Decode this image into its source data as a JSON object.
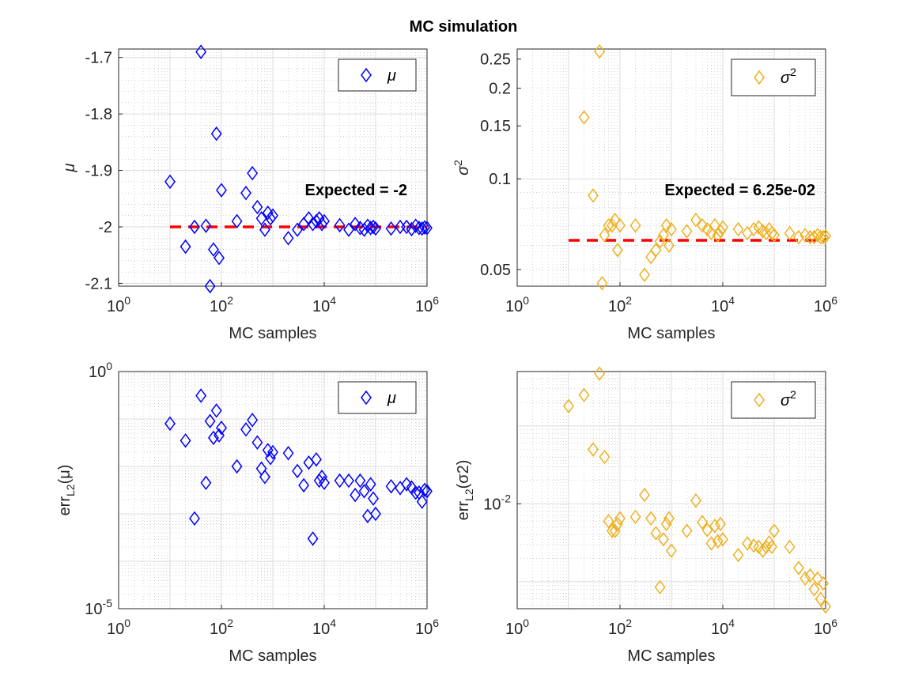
{
  "figure_title": "MC simulation",
  "chart_data": [
    {
      "type": "scatter",
      "ylabel_base": "μ",
      "xlabel": "MC samples",
      "xscale": "log",
      "yscale": "linear",
      "xlim": [
        1,
        1000000
      ],
      "ylim": [
        -2.105,
        -1.685
      ],
      "xticks": [
        1,
        100,
        10000,
        1000000
      ],
      "yticks": [
        -2.1,
        -2.0,
        -1.9,
        -1.8,
        -1.7
      ],
      "ytick_labels": [
        "-2.1",
        "-2",
        "-1.9",
        "-1.8",
        "-1.7"
      ],
      "grid": true,
      "legend_position": "top-right",
      "marker": "diamond",
      "color": "#0000ff",
      "series": [
        {
          "name": "μ",
          "x": [
            10,
            20,
            30,
            40,
            50,
            60,
            70,
            80,
            90,
            100,
            200,
            300,
            400,
            500,
            600,
            700,
            800,
            900,
            1000,
            2000,
            3000,
            4000,
            5000,
            6000,
            7000,
            8000,
            9000,
            10000,
            20000,
            30000,
            40000,
            50000,
            60000,
            70000,
            80000,
            90000,
            100000,
            200000,
            300000,
            400000,
            500000,
            600000,
            700000,
            800000,
            900000,
            1000000
          ],
          "y": [
            -1.92,
            -2.035,
            -2.0,
            -1.69,
            -1.998,
            -2.105,
            -2.04,
            -1.835,
            -2.055,
            -1.935,
            -1.99,
            -1.94,
            -1.905,
            -1.965,
            -1.985,
            -2.005,
            -1.975,
            -1.985,
            -1.98,
            -2.02,
            -2.005,
            -1.995,
            -1.985,
            -1.995,
            -1.99,
            -1.985,
            -1.995,
            -1.99,
            -1.997,
            -2.005,
            -1.995,
            -2.002,
            -2.005,
            -1.998,
            -2.002,
            -2.0,
            -2.003,
            -2.003,
            -2.0,
            -2.0,
            -2.004,
            -1.998,
            -2.002,
            -2.003,
            -2.001,
            -2.002
          ]
        }
      ],
      "reference_line": {
        "y": -2,
        "color": "#ff0000",
        "label": "Expected = -2"
      }
    },
    {
      "type": "scatter",
      "ylabel_base": "σ",
      "ylabel_sup": "2",
      "xlabel": "MC samples",
      "xscale": "log",
      "yscale": "log",
      "xlim": [
        1,
        1000000
      ],
      "ylim": [
        0.044,
        0.27
      ],
      "xticks": [
        1,
        100,
        10000,
        1000000
      ],
      "yticks": [
        0.05,
        0.1,
        0.15,
        0.2,
        0.25
      ],
      "ytick_labels": [
        "0.05",
        "0.1",
        "0.15",
        "0.2",
        "0.25"
      ],
      "grid": true,
      "legend_position": "top-right",
      "marker": "diamond",
      "color": "#edb120",
      "series": [
        {
          "name": "σ2",
          "x": [
            20,
            30,
            40,
            45,
            50,
            60,
            70,
            80,
            90,
            100,
            200,
            300,
            400,
            500,
            600,
            700,
            800,
            900,
            1000,
            2000,
            3000,
            4000,
            5000,
            6000,
            7000,
            8000,
            9000,
            10000,
            20000,
            30000,
            40000,
            50000,
            60000,
            70000,
            80000,
            90000,
            100000,
            200000,
            300000,
            400000,
            500000,
            600000,
            700000,
            800000,
            900000,
            1000000
          ],
          "y": [
            0.16,
            0.088,
            0.265,
            0.045,
            0.065,
            0.07,
            0.07,
            0.073,
            0.058,
            0.07,
            0.07,
            0.048,
            0.055,
            0.058,
            0.062,
            0.065,
            0.07,
            0.06,
            0.068,
            0.067,
            0.073,
            0.07,
            0.068,
            0.066,
            0.07,
            0.065,
            0.067,
            0.069,
            0.068,
            0.066,
            0.068,
            0.069,
            0.067,
            0.066,
            0.068,
            0.066,
            0.065,
            0.066,
            0.064,
            0.065,
            0.064,
            0.064,
            0.065,
            0.064,
            0.064,
            0.0645
          ]
        }
      ],
      "reference_line": {
        "y": 0.0625,
        "color": "#ff0000",
        "label": "Expected = 6.25e-02"
      }
    },
    {
      "type": "scatter",
      "ylabel_base": "err",
      "ylabel_sub": "L2",
      "ylabel_paren": "(μ)",
      "xlabel": "MC samples",
      "xscale": "log",
      "yscale": "log",
      "xlim": [
        1,
        1000000
      ],
      "ylim": [
        1e-05,
        1
      ],
      "xticks": [
        1,
        100,
        10000,
        1000000
      ],
      "yticks": [
        1e-05,
        1
      ],
      "ytick_labels": [
        "10^-5",
        "10^0"
      ],
      "grid": true,
      "legend_position": "top-right",
      "marker": "diamond",
      "color": "#0000ff",
      "series": [
        {
          "name": "μ",
          "x": [
            10,
            20,
            30,
            40,
            50,
            60,
            70,
            80,
            90,
            100,
            200,
            300,
            400,
            500,
            600,
            700,
            800,
            900,
            1000,
            2000,
            3000,
            4000,
            5000,
            6000,
            7000,
            8000,
            9000,
            10000,
            20000,
            30000,
            40000,
            50000,
            60000,
            70000,
            80000,
            90000,
            100000,
            200000,
            300000,
            400000,
            500000,
            600000,
            700000,
            800000,
            900000,
            1000000
          ],
          "y": [
            0.08,
            0.035,
            0.0008,
            0.31,
            0.0045,
            0.09,
            0.04,
            0.15,
            0.045,
            0.065,
            0.01,
            0.06,
            0.095,
            0.032,
            0.009,
            0.006,
            0.022,
            0.015,
            0.02,
            0.019,
            0.008,
            0.004,
            0.012,
            0.0003,
            0.014,
            0.005,
            0.006,
            0.0045,
            0.005,
            0.005,
            0.0025,
            0.005,
            0.003,
            0.0009,
            0.0042,
            0.0021,
            0.001,
            0.0038,
            0.0035,
            0.0042,
            0.0036,
            0.0028,
            0.0028,
            0.0018,
            0.0032,
            0.003
          ]
        }
      ]
    },
    {
      "type": "scatter",
      "ylabel_base": "err",
      "ylabel_sub": "L2",
      "ylabel_paren": "(σ2)",
      "xlabel": "MC samples",
      "xscale": "log",
      "yscale": "log",
      "xlim": [
        1,
        1000000
      ],
      "ylim": [
        0.00045,
        0.5
      ],
      "xticks": [
        1,
        100,
        10000,
        1000000
      ],
      "yticks": [
        0.01
      ],
      "ytick_labels": [
        "10^-2"
      ],
      "grid": true,
      "legend_position": "top-right",
      "marker": "diamond",
      "color": "#edb120",
      "series": [
        {
          "name": "σ2",
          "x": [
            10,
            20,
            30,
            40,
            50,
            60,
            70,
            80,
            90,
            100,
            200,
            300,
            400,
            500,
            600,
            700,
            800,
            900,
            1000,
            2000,
            3000,
            4000,
            5000,
            6000,
            7000,
            8000,
            9000,
            10000,
            20000,
            30000,
            40000,
            50000,
            60000,
            70000,
            80000,
            90000,
            100000,
            200000,
            300000,
            400000,
            500000,
            600000,
            700000,
            800000,
            900000,
            1000000
          ],
          "y": [
            0.18,
            0.25,
            0.05,
            0.47,
            0.04,
            0.006,
            0.0045,
            0.0045,
            0.0055,
            0.0065,
            0.0068,
            0.013,
            0.0065,
            0.0042,
            0.00085,
            0.0035,
            0.0055,
            0.0065,
            0.0025,
            0.0045,
            0.011,
            0.0058,
            0.0046,
            0.0031,
            0.0052,
            0.0033,
            0.0055,
            0.0035,
            0.0022,
            0.0031,
            0.0029,
            0.0028,
            0.0025,
            0.0028,
            0.0032,
            0.0028,
            0.0045,
            0.0028,
            0.0015,
            0.0011,
            0.0012,
            0.0008,
            0.0011,
            0.0006,
            0.00095,
            0.00048
          ]
        }
      ]
    }
  ]
}
